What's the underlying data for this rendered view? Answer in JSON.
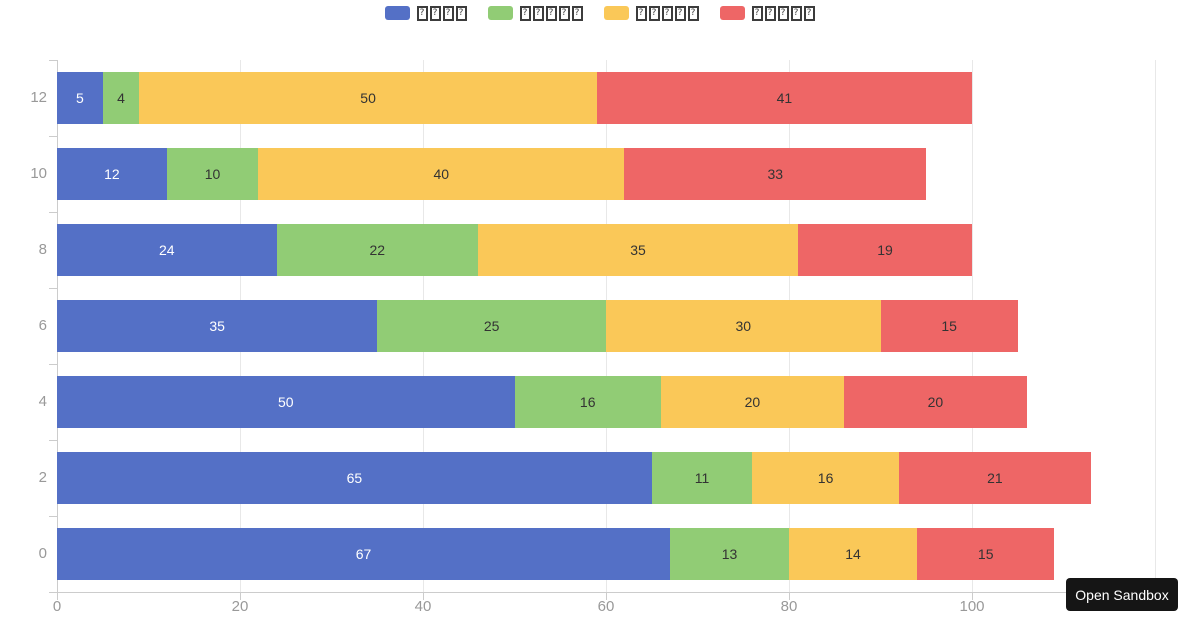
{
  "legend": {
    "glyph_char": "?",
    "items": [
      {
        "series": "series-1",
        "color": "#5470c6",
        "missing_glyph_count": 4
      },
      {
        "series": "series-2",
        "color": "#91cc75",
        "missing_glyph_count": 5
      },
      {
        "series": "series-3",
        "color": "#fac858",
        "missing_glyph_count": 5
      },
      {
        "series": "series-4",
        "color": "#ee6666",
        "missing_glyph_count": 5
      }
    ]
  },
  "chart_data": {
    "type": "bar",
    "orientation": "horizontal",
    "stacked": true,
    "grid": true,
    "legend_position": "top",
    "categories": [
      "12",
      "10",
      "8",
      "6",
      "4",
      "2",
      "0"
    ],
    "series": [
      {
        "legend_glyph_count": 4,
        "color": "#5470c6",
        "value_label_color": "#ffffff",
        "values": [
          5,
          12,
          24,
          35,
          50,
          65,
          67
        ]
      },
      {
        "legend_glyph_count": 5,
        "color": "#91cc75",
        "value_label_color": "#333333",
        "values": [
          4,
          10,
          22,
          25,
          16,
          11,
          13
        ]
      },
      {
        "legend_glyph_count": 5,
        "color": "#fac858",
        "value_label_color": "#333333",
        "values": [
          50,
          40,
          35,
          30,
          20,
          16,
          14
        ]
      },
      {
        "legend_glyph_count": 5,
        "color": "#ee6666",
        "value_label_color": "#333333",
        "values": [
          41,
          33,
          19,
          15,
          20,
          21,
          15
        ]
      }
    ],
    "x_axis": {
      "tick_labels": [
        "0",
        "20",
        "40",
        "60",
        "80",
        "100"
      ],
      "tick_values": [
        0,
        20,
        40,
        60,
        80,
        100
      ],
      "grid_values": [
        20,
        40,
        60,
        80,
        100,
        120
      ],
      "min": 0,
      "max": 120
    },
    "y_axis": {
      "labels": [
        "12",
        "10",
        "8",
        "6",
        "4",
        "2",
        "0"
      ]
    }
  },
  "colors": {
    "axis_line": "#cccccc",
    "grid_line": "#e8e8e8",
    "axis_label": "#999999",
    "background": "#ffffff"
  },
  "sandbox_button": {
    "label": "Open Sandbox"
  }
}
